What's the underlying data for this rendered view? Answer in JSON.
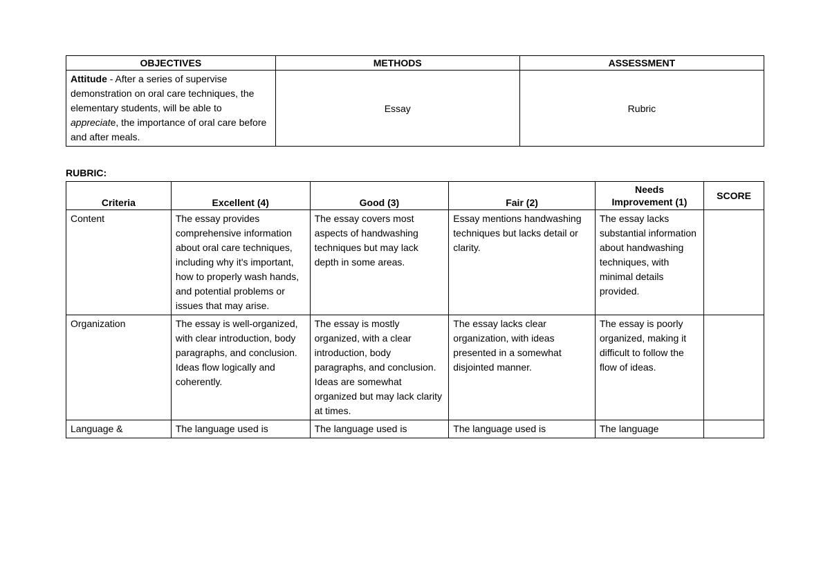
{
  "topTable": {
    "headers": {
      "objectives": "OBJECTIVES",
      "methods": "METHODS",
      "assessment": "ASSESSMENT"
    },
    "row": {
      "attitude_label": "Attitude",
      "attitude_text1": " - After a series of supervise demonstration on oral care techniques, the elementary students, will be able to ",
      "attitude_italic": "appreciat",
      "attitude_text2": "e, the importance of oral care before and after meals.",
      "methods": "Essay",
      "assessment": "Rubric"
    }
  },
  "rubricLabel": "RUBRIC:",
  "rubricTable": {
    "headers": {
      "criteria": "Criteria",
      "excellent": "Excellent (4)",
      "good": "Good (3)",
      "fair": "Fair (2)",
      "needs1": "Needs",
      "needs2": "Improvement (1)",
      "score": "SCORE"
    },
    "rows": [
      {
        "criteria": "Content",
        "excellent": "The essay provides comprehensive information about oral care techniques, including why it's important, how to properly wash hands, and potential problems or issues that may arise.",
        "good": "The essay covers most aspects of handwashing techniques but may lack depth in some areas.",
        "fair": "Essay mentions handwashing techniques but lacks detail or clarity.",
        "needs": "The essay lacks substantial information about handwashing techniques, with minimal details provided.",
        "score": ""
      },
      {
        "criteria": "Organization",
        "excellent": "The essay is well-organized, with clear introduction, body paragraphs, and conclusion. Ideas flow logically and coherently.",
        "good": "The essay is mostly organized, with a clear introduction, body paragraphs, and conclusion. Ideas are somewhat organized but may lack clarity at times.",
        "fair": "The essay lacks clear organization, with ideas presented in a somewhat disjointed manner.",
        "needs": "The essay is poorly organized, making it difficult to follow the flow of ideas.",
        "score": ""
      },
      {
        "criteria": "Language &",
        "excellent": "The language used is",
        "good": "The language used is",
        "fair": "The language used is",
        "needs": "The language",
        "score": ""
      }
    ]
  },
  "styles": {
    "col_objectives_width": "30%",
    "col_methods_width": "35%",
    "col_assessment_width": "35%",
    "rubric_col_criteria": "14%",
    "rubric_col_excellent": "18.5%",
    "rubric_col_good": "18.5%",
    "rubric_col_fair": "19.5%",
    "rubric_col_needs": "14.5%",
    "rubric_col_score": "8%"
  }
}
